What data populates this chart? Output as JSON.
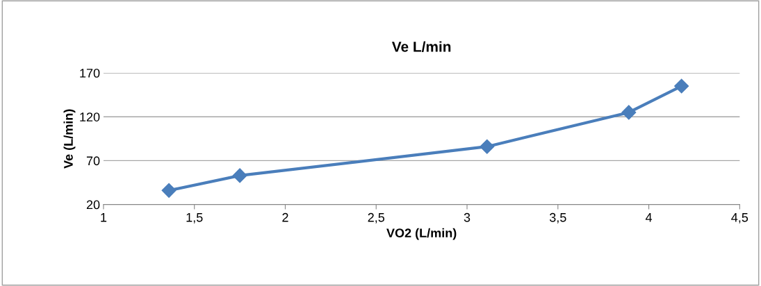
{
  "chart_data": {
    "type": "line",
    "title": "Ve L/min",
    "xlabel": "VO2 (L/min)",
    "ylabel": "Ve (L/min)",
    "x": [
      1.36,
      1.75,
      3.11,
      3.89,
      4.18
    ],
    "series": [
      {
        "color": "#4a7ebb",
        "values": [
          36,
          53,
          86,
          125,
          155
        ]
      }
    ],
    "xlim": [
      1,
      4.5
    ],
    "xticks": [
      1,
      {
        "value": 1.5,
        "label": "1,5"
      },
      2,
      {
        "value": 2.5,
        "label": "2,5"
      },
      3,
      {
        "value": 3.5,
        "label": "3,5"
      },
      4,
      {
        "value": 4.5,
        "label": "4,5"
      }
    ],
    "ylim": [
      20,
      170
    ],
    "yticks": [
      20,
      70,
      120,
      170
    ],
    "grid": "y",
    "legend": false,
    "marker": "diamond",
    "line_style": "solid"
  }
}
